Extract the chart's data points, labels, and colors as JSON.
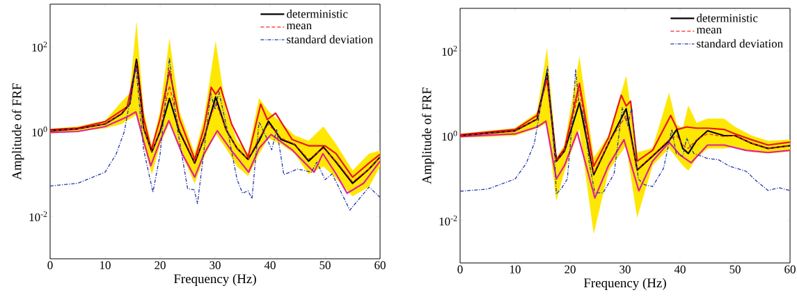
{
  "chart_data": [
    {
      "type": "line",
      "xlabel": "Frequency (Hz)",
      "ylabel": "Amplitude of FRF",
      "xlim": [
        0,
        60
      ],
      "xticks": [
        0,
        10,
        20,
        30,
        40,
        50,
        60
      ],
      "ylim": [
        0.001,
        1000
      ],
      "yticks": [
        {
          "value": 0.01,
          "label": "10$^{-2}$"
        },
        {
          "value": 1,
          "label": "10$^{0}$"
        },
        {
          "value": 100,
          "label": "10$^{2}$"
        }
      ],
      "log": "y",
      "grid": false,
      "legend": "top right",
      "series": [
        {
          "name": "deterministic",
          "color": "#000000",
          "line_style": "solid",
          "x": [
            0,
            5,
            10,
            13,
            14.5,
            15.7,
            17,
            18.5,
            20,
            21.7,
            23.5,
            26.3,
            28,
            30.1,
            32,
            34,
            36,
            38,
            39.7,
            42,
            44.5,
            47,
            49.7,
            52,
            55,
            58,
            60
          ],
          "values": [
            1.04,
            1.15,
            1.5,
            2.6,
            4.5,
            50,
            1.2,
            0.33,
            1.0,
            6,
            1.0,
            0.18,
            0.7,
            6.5,
            1.1,
            0.4,
            0.22,
            0.6,
            1.75,
            0.65,
            0.49,
            0.2,
            0.43,
            0.19,
            0.06,
            0.13,
            0.25
          ],
          "upper": [
            1.15,
            1.3,
            1.8,
            5,
            8,
            360,
            3,
            0.45,
            3,
            150,
            3,
            0.3,
            2,
            130,
            3,
            0.6,
            0.3,
            6,
            3,
            1.6,
            0.8,
            0.6,
            1.3,
            0.5,
            0.12,
            0.3,
            0.35
          ],
          "lower": [
            0.9,
            1.0,
            1.2,
            1.5,
            2,
            2.5,
            0.5,
            0.1,
            0.5,
            1.6,
            0.4,
            0.06,
            0.25,
            0.9,
            0.4,
            0.15,
            0.09,
            0.3,
            0.7,
            0.5,
            0.3,
            0.1,
            0.15,
            0.08,
            0.03,
            0.05,
            0.15
          ]
        },
        {
          "name": "mean",
          "color": "#ff2020",
          "line_style": "dashed",
          "x": [
            0,
            5,
            10,
            13,
            14.5,
            15.7,
            17,
            18.5,
            20,
            21.7,
            23.5,
            26.3,
            28,
            30.1,
            32,
            34,
            36,
            38,
            39.7,
            42,
            44.5,
            47,
            49.7,
            52,
            55,
            58,
            60
          ],
          "values": [
            1.05,
            1.15,
            1.5,
            2.7,
            4.5,
            40,
            1.2,
            0.33,
            1.1,
            12,
            1.1,
            0.19,
            0.75,
            5,
            1.1,
            0.4,
            0.22,
            0.7,
            1.5,
            0.7,
            0.5,
            0.22,
            0.4,
            0.2,
            0.065,
            0.13,
            0.25
          ]
        },
        {
          "name": "standard deviation",
          "color": "#2233aa",
          "line_style": "dashdot",
          "x": [
            0,
            5,
            10,
            12,
            13.5,
            15.6,
            17,
            18,
            18.7,
            20,
            21.7,
            23,
            25,
            26.2,
            26.8,
            28,
            29.2,
            30,
            30.7,
            32.5,
            34,
            35,
            36,
            36.7,
            38,
            39.5,
            40.3,
            41.2,
            42.5,
            45,
            47.5,
            48.5,
            50,
            51.3,
            54.5,
            58,
            60
          ],
          "values": [
            0.052,
            0.06,
            0.11,
            0.29,
            1.0,
            33,
            0.37,
            0.096,
            0.037,
            0.29,
            54,
            1.5,
            0.045,
            0.042,
            0.02,
            0.37,
            8,
            3.3,
            8.6,
            0.74,
            0.073,
            0.035,
            0.04,
            0.026,
            1.7,
            0.65,
            0.37,
            1.1,
            0.096,
            0.13,
            0.11,
            0.19,
            0.073,
            0.1,
            0.014,
            0.049,
            0.028
          ]
        },
        {
          "color": "#e8141c",
          "line_style": "solid",
          "x": [
            0,
            5,
            10,
            14,
            15.8,
            17,
            18.4,
            20,
            21.7,
            23.5,
            26.3,
            28,
            29.3,
            30.1,
            31,
            33,
            36,
            38.3,
            39.5,
            41,
            44,
            47,
            50,
            52,
            55,
            58,
            60
          ],
          "values": [
            1.1,
            1.2,
            1.7,
            3.8,
            44,
            2,
            0.37,
            2,
            27,
            2,
            0.22,
            1.2,
            11,
            7.5,
            11,
            1.5,
            0.25,
            4.4,
            1.9,
            2.7,
            0.65,
            0.46,
            0.46,
            0.3,
            0.084,
            0.18,
            0.29
          ]
        },
        {
          "color": "#e0209a",
          "line_style": "solid",
          "x": [
            0,
            5,
            10,
            14,
            15.6,
            17,
            18.3,
            20,
            21.6,
            24,
            26.3,
            28,
            30.4,
            33,
            36.1,
            38,
            40.2,
            44,
            46,
            48,
            49.6,
            52,
            54,
            57,
            60
          ],
          "values": [
            0.95,
            1.0,
            1.3,
            2.2,
            2.9,
            0.6,
            0.155,
            0.6,
            1.8,
            0.3,
            0.084,
            0.3,
            1.04,
            0.35,
            0.11,
            0.4,
            0.85,
            0.37,
            0.2,
            0.11,
            0.3,
            0.1,
            0.035,
            0.06,
            0.2
          ]
        }
      ]
    },
    {
      "type": "line",
      "xlabel": "Frequency (Hz)",
      "ylabel": "Amplitude of FRF",
      "xlim": [
        0,
        60
      ],
      "xticks": [
        0,
        10,
        20,
        30,
        40,
        50,
        60
      ],
      "ylim": [
        0.001,
        1000
      ],
      "yticks": [
        {
          "value": 0.01,
          "label": "10$^{-2}$"
        },
        {
          "value": 1,
          "label": "10$^{0}$"
        },
        {
          "value": 100,
          "label": "10$^{2}$"
        }
      ],
      "log": "y",
      "grid": false,
      "legend": "top right",
      "series": [
        {
          "name": "deterministic",
          "color": "#000000",
          "line_style": "solid",
          "x": [
            0,
            10,
            14,
            15.8,
            17.5,
            19,
            21.7,
            24.3,
            27,
            30.2,
            32.2,
            35,
            38,
            39.4,
            40.5,
            41.5,
            43,
            45,
            48,
            50,
            53,
            56,
            60
          ],
          "values": [
            1.0,
            1.3,
            2.45,
            30,
            0.25,
            0.44,
            6,
            0.12,
            0.66,
            4.3,
            0.155,
            0.33,
            0.76,
            1.4,
            0.5,
            0.38,
            0.76,
            1.3,
            1.0,
            1.0,
            0.66,
            0.5,
            0.58
          ],
          "upper": [
            1.1,
            1.5,
            3.5,
            110,
            0.3,
            0.6,
            70,
            0.3,
            1,
            25,
            0.4,
            0.5,
            10,
            1.8,
            1.5,
            5,
            2,
            2.5,
            2.5,
            1.6,
            1,
            0.75,
            0.8
          ],
          "lower": [
            0.9,
            1.0,
            1.5,
            2,
            0.03,
            0.15,
            1.5,
            0.005,
            0.15,
            0.6,
            0.012,
            0.2,
            0.5,
            0.3,
            0.2,
            0.15,
            0.3,
            0.5,
            0.5,
            0.55,
            0.42,
            0.38,
            0.43
          ]
        },
        {
          "name": "mean",
          "color": "#ff2020",
          "line_style": "dashed",
          "x": [
            0,
            10,
            14,
            15.8,
            17.5,
            19,
            21.7,
            24.3,
            27,
            30.2,
            32.2,
            35,
            38,
            39.4,
            40.5,
            41.5,
            43,
            45,
            48,
            50,
            53,
            56,
            60
          ],
          "values": [
            1.0,
            1.3,
            2.5,
            25,
            0.25,
            0.45,
            12,
            0.13,
            0.68,
            3,
            0.16,
            0.34,
            0.8,
            1.0,
            0.6,
            0.5,
            0.8,
            1.1,
            0.95,
            1.0,
            0.66,
            0.5,
            0.58
          ]
        },
        {
          "name": "standard deviation",
          "color": "#2233aa",
          "line_style": "dashdot",
          "x": [
            0,
            5,
            10,
            12,
            13.5,
            15.9,
            17.2,
            17.5,
            18.5,
            19.5,
            20.5,
            21,
            21.6,
            22.5,
            23.5,
            24.5,
            26,
            28,
            29.5,
            30.5,
            31.2,
            32.4,
            33.5,
            35,
            37,
            38.5,
            39.3,
            40.5,
            41.2,
            42.5,
            45,
            47,
            49,
            52,
            54,
            56,
            58,
            60
          ],
          "values": [
            0.049,
            0.055,
            0.095,
            0.22,
            0.66,
            42,
            0.29,
            0.042,
            0.059,
            0.095,
            3.0,
            36,
            6,
            3,
            0.22,
            0.045,
            0.045,
            0.126,
            4.6,
            1.7,
            4.6,
            0.095,
            0.07,
            0.063,
            0.17,
            1.4,
            0.38,
            0.33,
            0.87,
            0.38,
            0.29,
            0.27,
            0.19,
            0.145,
            0.083,
            0.051,
            0.059,
            0.051
          ]
        },
        {
          "color": "#e8141c",
          "line_style": "solid",
          "x": [
            0,
            10,
            14,
            15.8,
            17.5,
            19,
            21.7,
            24.3,
            27,
            29.3,
            30.2,
            31,
            32.2,
            35,
            38.3,
            39.5,
            41.2,
            43,
            45,
            48,
            50,
            53,
            56,
            60
          ],
          "values": [
            1.05,
            1.4,
            3,
            22,
            0.27,
            0.5,
            17,
            0.19,
            0.9,
            9,
            5,
            6.5,
            0.25,
            0.45,
            3.0,
            1.4,
            1.6,
            1.5,
            1.5,
            1.4,
            1.1,
            0.8,
            0.6,
            0.7
          ]
        },
        {
          "color": "#e0209a",
          "line_style": "solid",
          "x": [
            0,
            10,
            14,
            15.6,
            17.5,
            19,
            21.3,
            24.5,
            27,
            29.8,
            32.5,
            35,
            38,
            40,
            42,
            45,
            48,
            52,
            56,
            60
          ],
          "values": [
            0.95,
            1.1,
            1.6,
            2.2,
            0.095,
            0.2,
            1.2,
            0.034,
            0.2,
            0.8,
            0.05,
            0.25,
            0.7,
            0.35,
            0.23,
            0.6,
            0.6,
            0.45,
            0.4,
            0.45
          ]
        }
      ]
    }
  ]
}
